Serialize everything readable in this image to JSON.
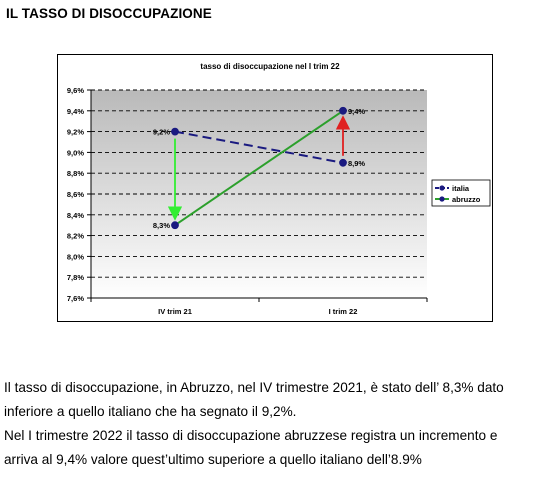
{
  "heading": "IL TASSO DI DISOCCUPAZIONE",
  "chart_data": {
    "type": "line",
    "title": "tasso di disoccupazione nel I trim 22",
    "categories": [
      "IV trim 21",
      "I trim 22"
    ],
    "ylim": [
      7.6,
      9.6
    ],
    "yticks": [
      "7,6%",
      "7,8%",
      "8,0%",
      "8,2%",
      "8,4%",
      "8,6%",
      "8,8%",
      "9,0%",
      "9,2%",
      "9,4%",
      "9,6%"
    ],
    "grid": true,
    "legend_position": "right",
    "series": [
      {
        "name": "italia",
        "values": [
          9.2,
          8.9
        ],
        "labels": [
          "9,2%",
          "8,9%"
        ],
        "color": "#1a1a80",
        "style": "dashed"
      },
      {
        "name": "abruzzo",
        "values": [
          8.3,
          9.4
        ],
        "labels": [
          "8,3%",
          "9,4%"
        ],
        "color": "#2ca02c",
        "style": "solid"
      }
    ],
    "arrows": [
      {
        "category": "IV trim 21",
        "from": 9.2,
        "to": 8.3,
        "color": "#33ee33"
      },
      {
        "category": "I trim 22",
        "from": 8.9,
        "to": 9.4,
        "color": "#e02020"
      }
    ]
  },
  "paragraph1": [
    "Il tasso di disoccupazione, in Abruzzo, nel IV trimestre 2021, è stato dell’ 8,3% dato",
    "inferiore a quello italiano che ha segnato il 9,2%."
  ],
  "paragraph2": [
    "Nel I trimestre 2022 il tasso di disoccupazione abruzzese registra un incremento e",
    "arriva al 9,4% valore quest’ultimo superiore a quello italiano dell’8.9%"
  ]
}
